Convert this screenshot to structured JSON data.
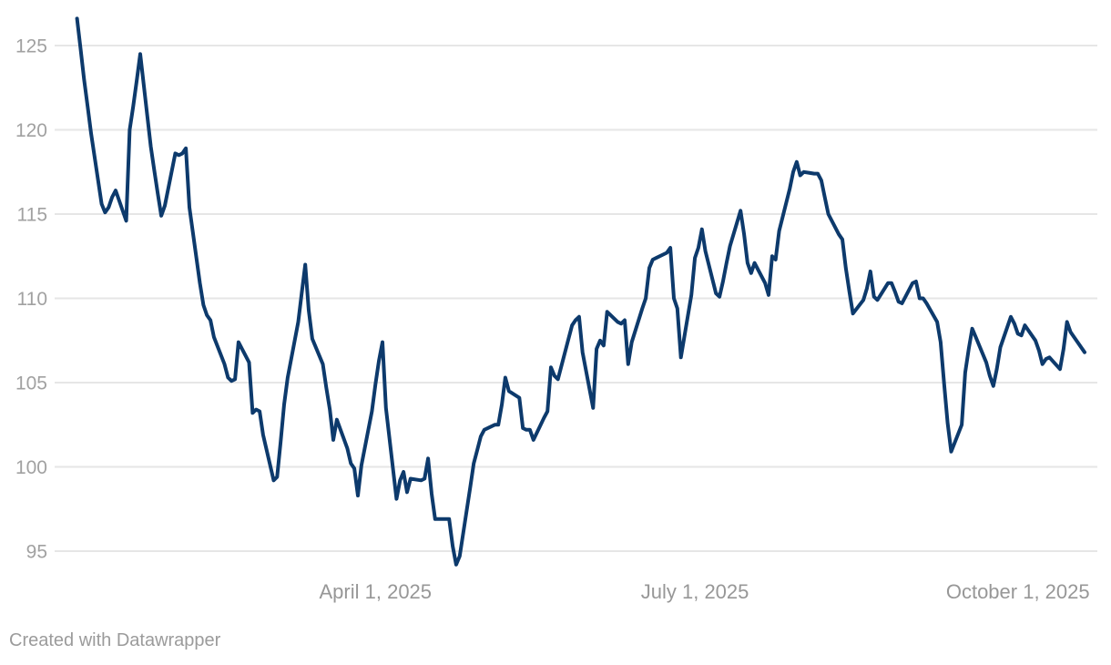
{
  "footer": {
    "credit": "Created with Datawrapper"
  },
  "colors": {
    "line": "#0d3a6c",
    "gridline": "#e6e6e6",
    "y_tick_label": "#a1a1a1",
    "x_tick_label": "#979797",
    "credit": "#9b9b9b",
    "background": "#ffffff"
  },
  "chart_data": {
    "type": "line",
    "title": "",
    "legend": "none",
    "grid": true,
    "ylim": [
      92.8,
      127.7
    ],
    "y_ticks": [
      125,
      120,
      115,
      110,
      105,
      100,
      95
    ],
    "y_tick_labels": [
      "125",
      "120",
      "115",
      "110",
      "105",
      "100",
      "95"
    ],
    "x_ticks": [
      {
        "date": "2025-04-01",
        "label": "April 1, 2025"
      },
      {
        "date": "2025-07-01",
        "label": "July 1, 2025"
      },
      {
        "date": "2025-10-01",
        "label": "October 1, 2025"
      }
    ],
    "points": [
      [
        "2025-01-06",
        126.6
      ],
      [
        "2025-01-07",
        124.8
      ],
      [
        "2025-01-08",
        123.0
      ],
      [
        "2025-01-09",
        121.4
      ],
      [
        "2025-01-10",
        119.8
      ],
      [
        "2025-01-13",
        115.6
      ],
      [
        "2025-01-14",
        115.1
      ],
      [
        "2025-01-15",
        115.4
      ],
      [
        "2025-01-16",
        116.0
      ],
      [
        "2025-01-17",
        116.4
      ],
      [
        "2025-01-20",
        114.6
      ],
      [
        "2025-01-21",
        120.0
      ],
      [
        "2025-01-22",
        121.4
      ],
      [
        "2025-01-23",
        122.9
      ],
      [
        "2025-01-24",
        124.5
      ],
      [
        "2025-01-27",
        119.0
      ],
      [
        "2025-01-28",
        117.6
      ],
      [
        "2025-01-29",
        116.2
      ],
      [
        "2025-01-30",
        114.9
      ],
      [
        "2025-01-31",
        115.5
      ],
      [
        "2025-02-03",
        118.6
      ],
      [
        "2025-02-04",
        118.5
      ],
      [
        "2025-02-05",
        118.6
      ],
      [
        "2025-02-06",
        118.9
      ],
      [
        "2025-02-07",
        115.4
      ],
      [
        "2025-02-10",
        110.9
      ],
      [
        "2025-02-11",
        109.6
      ],
      [
        "2025-02-12",
        109.0
      ],
      [
        "2025-02-13",
        108.7
      ],
      [
        "2025-02-14",
        107.7
      ],
      [
        "2025-02-17",
        106.1
      ],
      [
        "2025-02-18",
        105.3
      ],
      [
        "2025-02-19",
        105.1
      ],
      [
        "2025-02-20",
        105.2
      ],
      [
        "2025-02-21",
        107.4
      ],
      [
        "2025-02-24",
        106.2
      ],
      [
        "2025-02-25",
        103.2
      ],
      [
        "2025-02-26",
        103.4
      ],
      [
        "2025-02-27",
        103.3
      ],
      [
        "2025-02-28",
        101.9
      ],
      [
        "2025-03-03",
        99.2
      ],
      [
        "2025-03-04",
        99.4
      ],
      [
        "2025-03-05",
        101.5
      ],
      [
        "2025-03-06",
        103.7
      ],
      [
        "2025-03-07",
        105.3
      ],
      [
        "2025-03-10",
        108.6
      ],
      [
        "2025-03-11",
        110.3
      ],
      [
        "2025-03-12",
        112.0
      ],
      [
        "2025-03-13",
        109.3
      ],
      [
        "2025-03-14",
        107.6
      ],
      [
        "2025-03-17",
        106.1
      ],
      [
        "2025-03-18",
        104.7
      ],
      [
        "2025-03-19",
        103.4
      ],
      [
        "2025-03-20",
        101.6
      ],
      [
        "2025-03-21",
        102.8
      ],
      [
        "2025-03-24",
        101.1
      ],
      [
        "2025-03-25",
        100.2
      ],
      [
        "2025-03-26",
        99.9
      ],
      [
        "2025-03-27",
        98.3
      ],
      [
        "2025-03-28",
        100.1
      ],
      [
        "2025-03-31",
        103.3
      ],
      [
        "2025-04-01",
        104.9
      ],
      [
        "2025-04-02",
        106.3
      ],
      [
        "2025-04-03",
        107.4
      ],
      [
        "2025-04-04",
        103.5
      ],
      [
        "2025-04-07",
        98.1
      ],
      [
        "2025-04-08",
        99.2
      ],
      [
        "2025-04-09",
        99.7
      ],
      [
        "2025-04-10",
        98.5
      ],
      [
        "2025-04-11",
        99.3
      ],
      [
        "2025-04-14",
        99.2
      ],
      [
        "2025-04-15",
        99.3
      ],
      [
        "2025-04-16",
        100.5
      ],
      [
        "2025-04-17",
        98.4
      ],
      [
        "2025-04-18",
        96.9
      ],
      [
        "2025-04-21",
        96.9
      ],
      [
        "2025-04-22",
        96.9
      ],
      [
        "2025-04-23",
        95.3
      ],
      [
        "2025-04-24",
        94.2
      ],
      [
        "2025-04-25",
        94.7
      ],
      [
        "2025-04-28",
        98.8
      ],
      [
        "2025-04-29",
        100.2
      ],
      [
        "2025-04-30",
        101.0
      ],
      [
        "2025-05-01",
        101.8
      ],
      [
        "2025-05-02",
        102.2
      ],
      [
        "2025-05-05",
        102.5
      ],
      [
        "2025-05-06",
        102.5
      ],
      [
        "2025-05-07",
        103.7
      ],
      [
        "2025-05-08",
        105.3
      ],
      [
        "2025-05-09",
        104.5
      ],
      [
        "2025-05-12",
        104.1
      ],
      [
        "2025-05-13",
        102.3
      ],
      [
        "2025-05-14",
        102.2
      ],
      [
        "2025-05-15",
        102.2
      ],
      [
        "2025-05-16",
        101.6
      ],
      [
        "2025-05-19",
        102.9
      ],
      [
        "2025-05-20",
        103.3
      ],
      [
        "2025-05-21",
        105.9
      ],
      [
        "2025-05-22",
        105.4
      ],
      [
        "2025-05-23",
        105.2
      ],
      [
        "2025-05-26",
        107.6
      ],
      [
        "2025-05-27",
        108.4
      ],
      [
        "2025-05-28",
        108.7
      ],
      [
        "2025-05-29",
        108.9
      ],
      [
        "2025-05-30",
        106.8
      ],
      [
        "2025-06-02",
        103.5
      ],
      [
        "2025-06-03",
        107.0
      ],
      [
        "2025-06-04",
        107.5
      ],
      [
        "2025-06-05",
        107.2
      ],
      [
        "2025-06-06",
        109.2
      ],
      [
        "2025-06-09",
        108.6
      ],
      [
        "2025-06-10",
        108.5
      ],
      [
        "2025-06-11",
        108.7
      ],
      [
        "2025-06-12",
        106.1
      ],
      [
        "2025-06-13",
        107.4
      ],
      [
        "2025-06-16",
        109.4
      ],
      [
        "2025-06-17",
        110.0
      ],
      [
        "2025-06-18",
        111.8
      ],
      [
        "2025-06-19",
        112.3
      ],
      [
        "2025-06-20",
        112.4
      ],
      [
        "2025-06-23",
        112.7
      ],
      [
        "2025-06-24",
        113.0
      ],
      [
        "2025-06-25",
        110.0
      ],
      [
        "2025-06-26",
        109.4
      ],
      [
        "2025-06-27",
        106.5
      ],
      [
        "2025-06-30",
        110.2
      ],
      [
        "2025-07-01",
        112.4
      ],
      [
        "2025-07-02",
        113.0
      ],
      [
        "2025-07-03",
        114.1
      ],
      [
        "2025-07-04",
        112.8
      ],
      [
        "2025-07-07",
        110.3
      ],
      [
        "2025-07-08",
        110.1
      ],
      [
        "2025-07-09",
        111.0
      ],
      [
        "2025-07-10",
        112.1
      ],
      [
        "2025-07-11",
        113.1
      ],
      [
        "2025-07-14",
        115.2
      ],
      [
        "2025-07-15",
        113.8
      ],
      [
        "2025-07-16",
        112.1
      ],
      [
        "2025-07-17",
        111.5
      ],
      [
        "2025-07-18",
        112.1
      ],
      [
        "2025-07-21",
        110.9
      ],
      [
        "2025-07-22",
        110.2
      ],
      [
        "2025-07-23",
        112.5
      ],
      [
        "2025-07-24",
        112.3
      ],
      [
        "2025-07-25",
        114.0
      ],
      [
        "2025-07-28",
        116.5
      ],
      [
        "2025-07-29",
        117.5
      ],
      [
        "2025-07-30",
        118.1
      ],
      [
        "2025-07-31",
        117.3
      ],
      [
        "2025-08-01",
        117.5
      ],
      [
        "2025-08-04",
        117.4
      ],
      [
        "2025-08-05",
        117.4
      ],
      [
        "2025-08-06",
        117.0
      ],
      [
        "2025-08-07",
        116.0
      ],
      [
        "2025-08-08",
        115.0
      ],
      [
        "2025-08-11",
        113.8
      ],
      [
        "2025-08-12",
        113.5
      ],
      [
        "2025-08-13",
        111.8
      ],
      [
        "2025-08-14",
        110.4
      ],
      [
        "2025-08-15",
        109.1
      ],
      [
        "2025-08-18",
        109.9
      ],
      [
        "2025-08-19",
        110.6
      ],
      [
        "2025-08-20",
        111.6
      ],
      [
        "2025-08-21",
        110.1
      ],
      [
        "2025-08-22",
        109.9
      ],
      [
        "2025-08-25",
        110.9
      ],
      [
        "2025-08-26",
        110.9
      ],
      [
        "2025-08-27",
        110.4
      ],
      [
        "2025-08-28",
        109.8
      ],
      [
        "2025-08-29",
        109.7
      ],
      [
        "2025-09-01",
        110.9
      ],
      [
        "2025-09-02",
        111.0
      ],
      [
        "2025-09-03",
        110.0
      ],
      [
        "2025-09-04",
        110.0
      ],
      [
        "2025-09-05",
        109.7
      ],
      [
        "2025-09-08",
        108.6
      ],
      [
        "2025-09-09",
        107.4
      ],
      [
        "2025-09-10",
        104.9
      ],
      [
        "2025-09-11",
        102.6
      ],
      [
        "2025-09-12",
        100.9
      ],
      [
        "2025-09-15",
        102.5
      ],
      [
        "2025-09-16",
        105.6
      ],
      [
        "2025-09-17",
        107.0
      ],
      [
        "2025-09-18",
        108.2
      ],
      [
        "2025-09-19",
        107.7
      ],
      [
        "2025-09-22",
        106.2
      ],
      [
        "2025-09-23",
        105.4
      ],
      [
        "2025-09-24",
        104.8
      ],
      [
        "2025-09-25",
        105.8
      ],
      [
        "2025-09-26",
        107.1
      ],
      [
        "2025-09-29",
        108.9
      ],
      [
        "2025-09-30",
        108.5
      ],
      [
        "2025-10-01",
        107.9
      ],
      [
        "2025-10-02",
        107.8
      ],
      [
        "2025-10-03",
        108.4
      ],
      [
        "2025-10-06",
        107.5
      ],
      [
        "2025-10-07",
        106.9
      ],
      [
        "2025-10-08",
        106.1
      ],
      [
        "2025-10-09",
        106.4
      ],
      [
        "2025-10-10",
        106.5
      ],
      [
        "2025-10-13",
        105.8
      ],
      [
        "2025-10-14",
        107.0
      ],
      [
        "2025-10-15",
        108.6
      ],
      [
        "2025-10-16",
        108.0
      ],
      [
        "2025-10-17",
        107.7
      ],
      [
        "2025-10-20",
        106.8
      ]
    ]
  }
}
